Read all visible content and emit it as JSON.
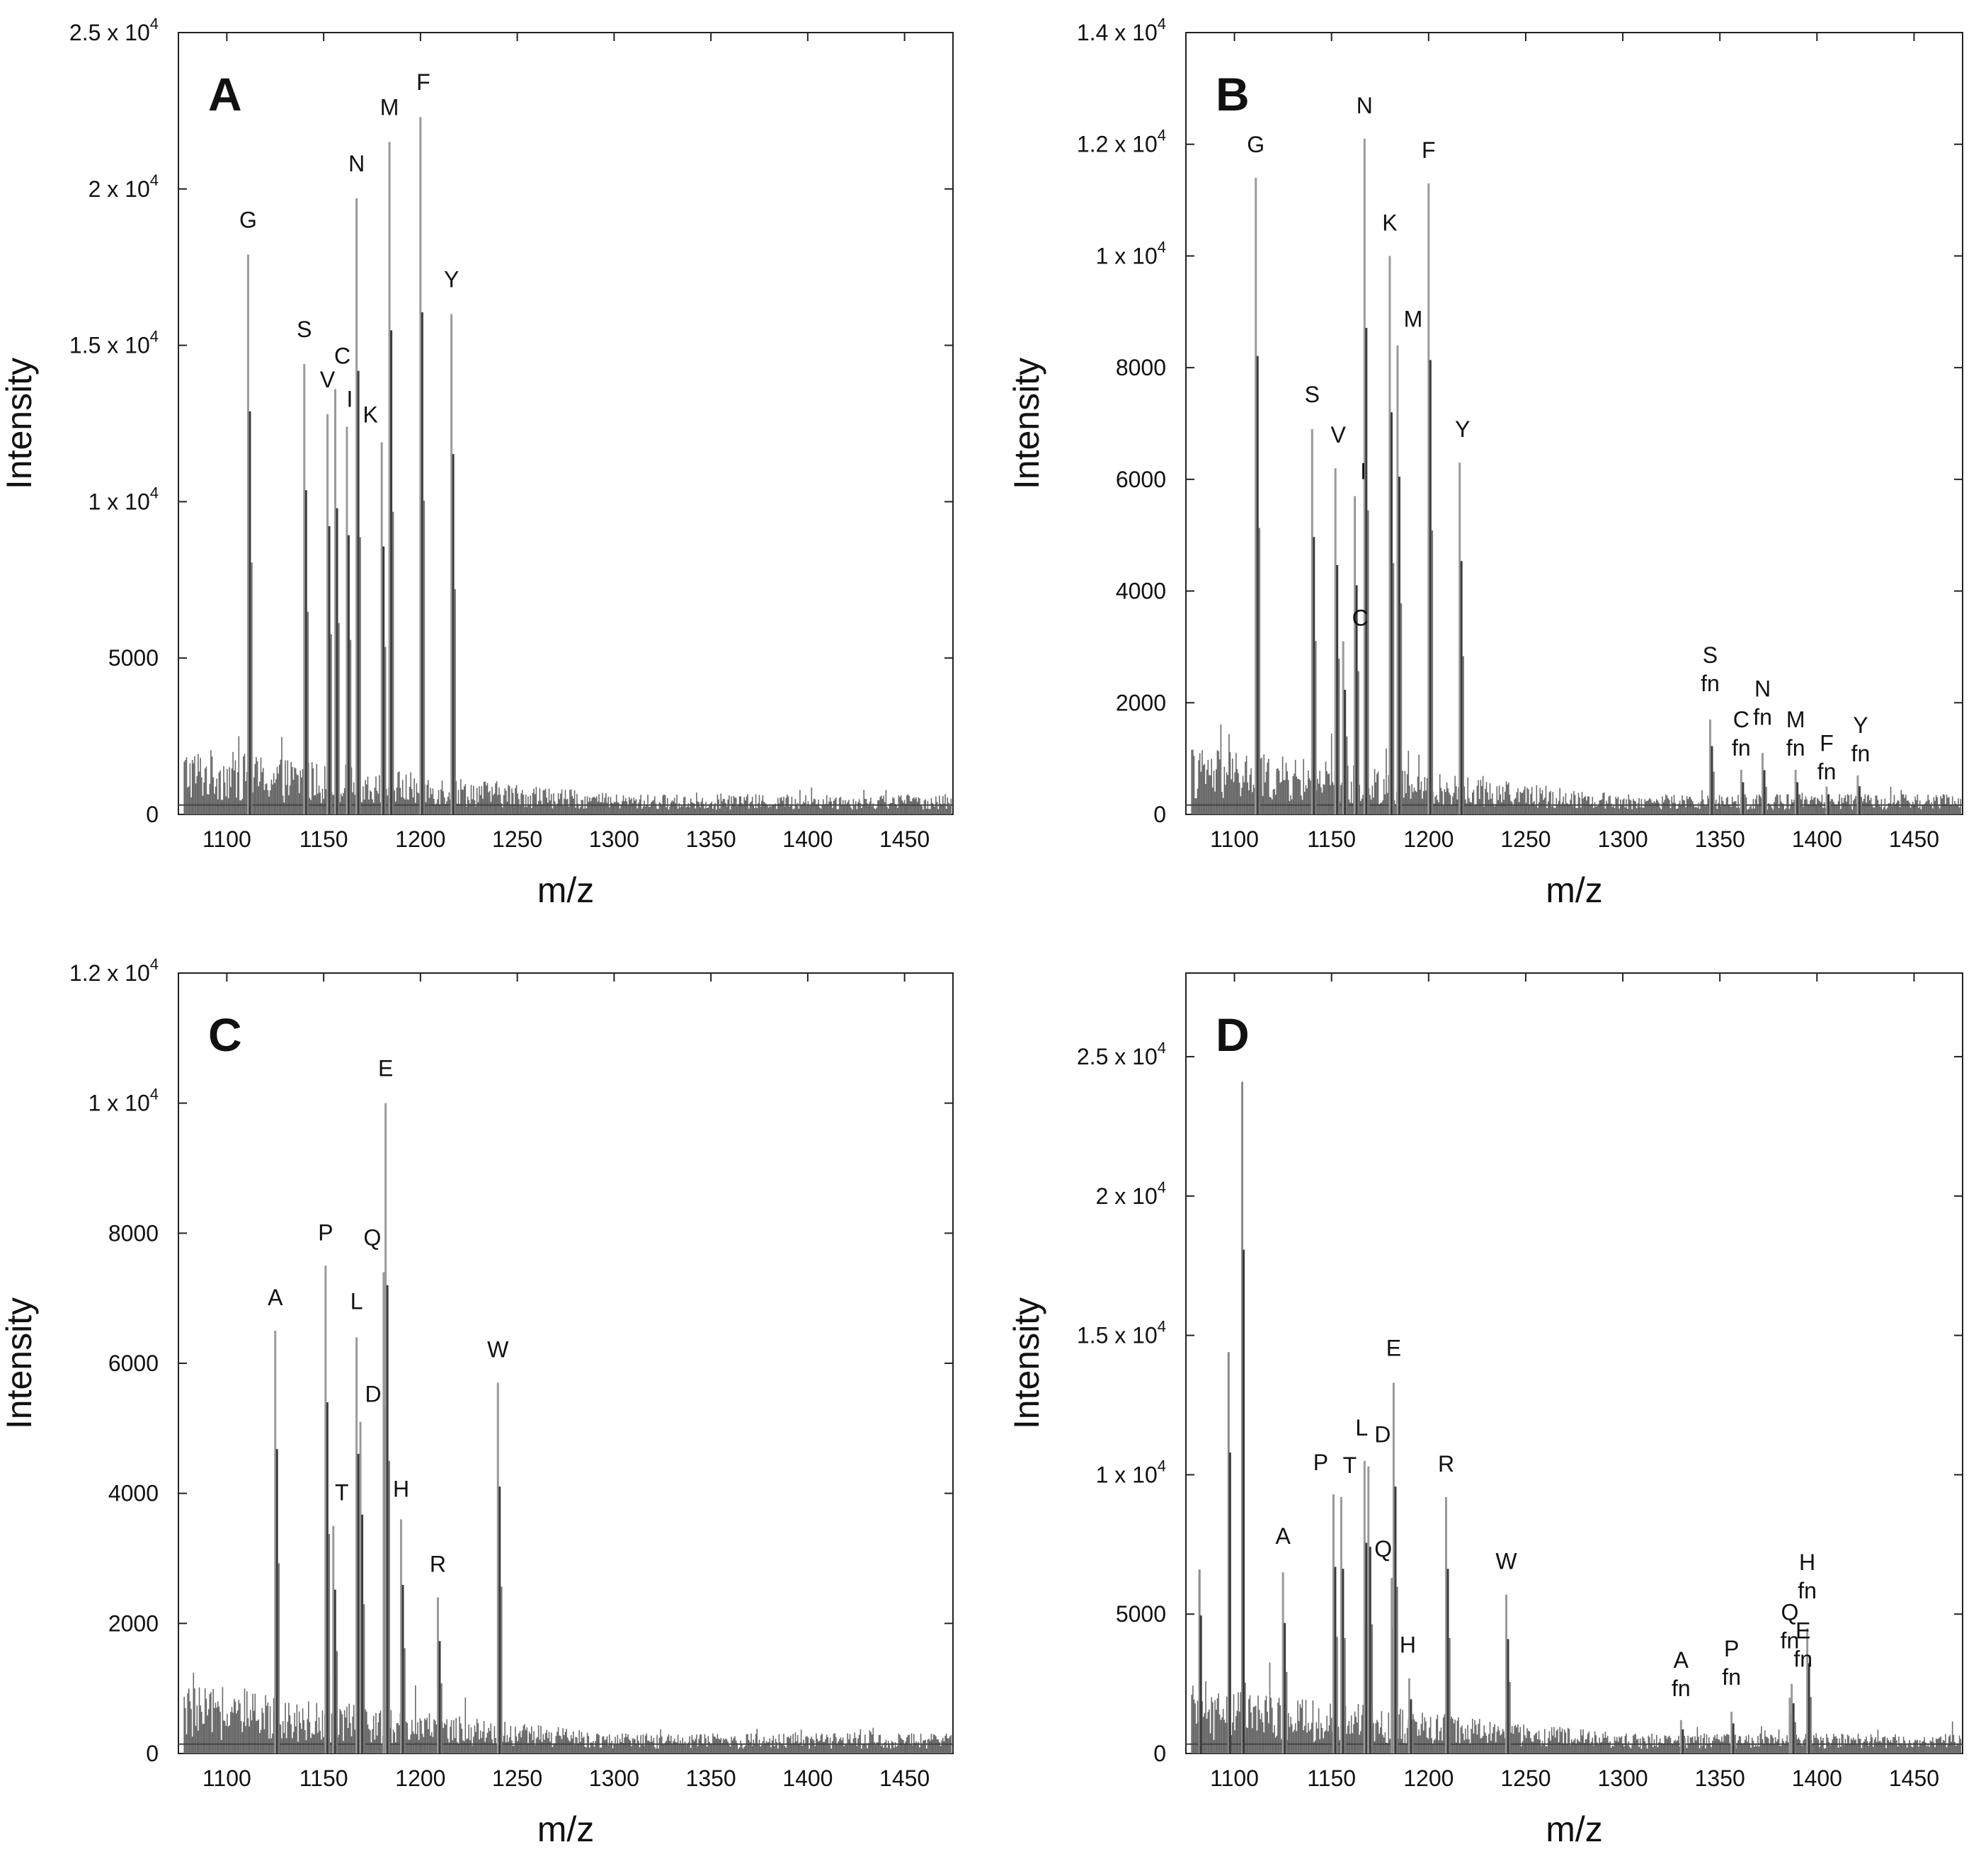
{
  "chart_data": [
    {
      "type": "line",
      "panel": "A",
      "xlabel": "m/z",
      "ylabel": "Intensity",
      "xlim": [
        1075,
        1475
      ],
      "ylim": [
        0,
        25000
      ],
      "xticks": [
        1100,
        1150,
        1200,
        1250,
        1300,
        1350,
        1400,
        1450
      ],
      "xtick_labels": [
        "1100",
        "1150",
        "1200",
        "1250",
        "1300",
        "1350",
        "1400",
        "1450"
      ],
      "yticks": [
        {
          "value": 0,
          "main": "0",
          "exp": ""
        },
        {
          "value": 5000,
          "main": "5000",
          "exp": ""
        },
        {
          "value": 10000,
          "main": "1 x 10",
          "exp": "4"
        },
        {
          "value": 15000,
          "main": "1.5 x 10",
          "exp": "4"
        },
        {
          "value": 20000,
          "main": "2 x 10",
          "exp": "4"
        },
        {
          "value": 25000,
          "main": "2.5 x 10",
          "exp": "4"
        }
      ],
      "peaks": [
        {
          "label": "G",
          "mz": 1111,
          "intensity": 17900
        },
        {
          "label": "S",
          "mz": 1140,
          "intensity": 14400
        },
        {
          "label": "V",
          "mz": 1152,
          "intensity": 12800
        },
        {
          "label": "C",
          "mz": 1156,
          "intensity": 13600
        },
        {
          "label": "I",
          "mz": 1162,
          "intensity": 12400
        },
        {
          "label": "N",
          "mz": 1167,
          "intensity": 19700
        },
        {
          "label": "K",
          "mz": 1180,
          "intensity": 11900
        },
        {
          "label": "M",
          "mz": 1184,
          "intensity": 21500
        },
        {
          "label": "F",
          "mz": 1200,
          "intensity": 22300
        },
        {
          "label": "Y",
          "mz": 1216,
          "intensity": 16000
        }
      ]
    },
    {
      "type": "line",
      "panel": "B",
      "xlabel": "m/z",
      "ylabel": "Intensity",
      "xlim": [
        1075,
        1475
      ],
      "ylim": [
        0,
        14000
      ],
      "xticks": [
        1100,
        1150,
        1200,
        1250,
        1300,
        1350,
        1400,
        1450
      ],
      "xtick_labels": [
        "1100",
        "1150",
        "1200",
        "1250",
        "1300",
        "1350",
        "1400",
        "1450"
      ],
      "yticks": [
        {
          "value": 0,
          "main": "0",
          "exp": ""
        },
        {
          "value": 2000,
          "main": "2000",
          "exp": ""
        },
        {
          "value": 4000,
          "main": "4000",
          "exp": ""
        },
        {
          "value": 6000,
          "main": "6000",
          "exp": ""
        },
        {
          "value": 8000,
          "main": "8000",
          "exp": ""
        },
        {
          "value": 10000,
          "main": "1 x 10",
          "exp": "4"
        },
        {
          "value": 12000,
          "main": "1.2 x 10",
          "exp": "4"
        },
        {
          "value": 14000,
          "main": "1.4 x 10",
          "exp": "4"
        }
      ],
      "peaks": [
        {
          "label": "G",
          "mz": 1111,
          "intensity": 11400
        },
        {
          "label": "S",
          "mz": 1140,
          "intensity": 6900
        },
        {
          "label": "V",
          "mz": 1152,
          "intensity": 6200
        },
        {
          "label": "I",
          "mz": 1162,
          "intensity": 5700
        },
        {
          "label": "C",
          "mz": 1156,
          "intensity": 3100
        },
        {
          "label": "N",
          "mz": 1167,
          "intensity": 12100
        },
        {
          "label": "K",
          "mz": 1180,
          "intensity": 10000
        },
        {
          "label": "M",
          "mz": 1184,
          "intensity": 8400
        },
        {
          "label": "F",
          "mz": 1200,
          "intensity": 11300
        },
        {
          "label": "Y",
          "mz": 1216,
          "intensity": 6300
        },
        {
          "label": "S",
          "sub": "fn",
          "mz": 1345,
          "intensity": 1700
        },
        {
          "label": "C",
          "sub": "fn",
          "mz": 1361,
          "intensity": 800
        },
        {
          "label": "N",
          "sub": "fn",
          "mz": 1372,
          "intensity": 1100
        },
        {
          "label": "M",
          "sub": "fn",
          "mz": 1389,
          "intensity": 800
        },
        {
          "label": "F",
          "sub": "fn",
          "mz": 1405,
          "intensity": 500
        },
        {
          "label": "Y",
          "sub": "fn",
          "mz": 1421,
          "intensity": 700
        }
      ]
    },
    {
      "type": "line",
      "panel": "C",
      "xlabel": "m/z",
      "ylabel": "Intensity",
      "xlim": [
        1075,
        1475
      ],
      "ylim": [
        0,
        12000
      ],
      "xticks": [
        1100,
        1150,
        1200,
        1250,
        1300,
        1350,
        1400,
        1450
      ],
      "xtick_labels": [
        "1100",
        "1150",
        "1200",
        "1250",
        "1300",
        "1350",
        "1400",
        "1450"
      ],
      "yticks": [
        {
          "value": 0,
          "main": "0",
          "exp": ""
        },
        {
          "value": 2000,
          "main": "2000",
          "exp": ""
        },
        {
          "value": 4000,
          "main": "4000",
          "exp": ""
        },
        {
          "value": 6000,
          "main": "6000",
          "exp": ""
        },
        {
          "value": 8000,
          "main": "8000",
          "exp": ""
        },
        {
          "value": 10000,
          "main": "1 x 10",
          "exp": "4"
        },
        {
          "value": 12000,
          "main": "1.2 x 10",
          "exp": "4"
        }
      ],
      "peaks": [
        {
          "label": "A",
          "mz": 1125,
          "intensity": 6500
        },
        {
          "label": "P",
          "mz": 1151,
          "intensity": 7500
        },
        {
          "label": "T",
          "mz": 1155,
          "intensity": 3500
        },
        {
          "label": "L",
          "mz": 1167,
          "intensity": 6400
        },
        {
          "label": "D",
          "mz": 1169,
          "intensity": 5100
        },
        {
          "label": "Q",
          "mz": 1181,
          "intensity": 7400
        },
        {
          "label": "E",
          "mz": 1182,
          "intensity": 10000
        },
        {
          "label": "H",
          "mz": 1190,
          "intensity": 3600
        },
        {
          "label": "R",
          "mz": 1209,
          "intensity": 2400
        },
        {
          "label": "W",
          "mz": 1240,
          "intensity": 5700
        }
      ]
    },
    {
      "type": "line",
      "panel": "D",
      "xlabel": "m/z",
      "ylabel": "Intensity",
      "xlim": [
        1075,
        1475
      ],
      "ylim": [
        0,
        28000
      ],
      "xticks": [
        1100,
        1150,
        1200,
        1250,
        1300,
        1350,
        1400,
        1450
      ],
      "xtick_labels": [
        "1100",
        "1150",
        "1200",
        "1250",
        "1300",
        "1350",
        "1400",
        "1450"
      ],
      "yticks": [
        {
          "value": 0,
          "main": "0",
          "exp": ""
        },
        {
          "value": 5000,
          "main": "5000",
          "exp": ""
        },
        {
          "value": 10000,
          "main": "1 x 10",
          "exp": "4"
        },
        {
          "value": 15000,
          "main": "1.5 x 10",
          "exp": "4"
        },
        {
          "value": 20000,
          "main": "2 x 10",
          "exp": "4"
        },
        {
          "value": 25000,
          "main": "2.5 x 10",
          "exp": "4"
        }
      ],
      "unlabeled_peaks": [
        {
          "mz": 1097,
          "intensity": 14400
        },
        {
          "mz": 1104,
          "intensity": 24100
        },
        {
          "mz": 1082,
          "intensity": 6600
        }
      ],
      "peaks": [
        {
          "label": "A",
          "mz": 1125,
          "intensity": 6500
        },
        {
          "label": "P",
          "mz": 1151,
          "intensity": 9300
        },
        {
          "label": "T",
          "mz": 1155,
          "intensity": 9200
        },
        {
          "label": "L",
          "mz": 1167,
          "intensity": 10500
        },
        {
          "label": "D",
          "mz": 1169,
          "intensity": 10300
        },
        {
          "label": "Q",
          "mz": 1181,
          "intensity": 6300
        },
        {
          "label": "E",
          "mz": 1182,
          "intensity": 13300
        },
        {
          "label": "H",
          "mz": 1190,
          "intensity": 2700
        },
        {
          "label": "R",
          "mz": 1209,
          "intensity": 9200
        },
        {
          "label": "W",
          "mz": 1240,
          "intensity": 5700
        },
        {
          "label": "A",
          "sub": "fn",
          "mz": 1330,
          "intensity": 1200
        },
        {
          "label": "P",
          "sub": "fn",
          "mz": 1356,
          "intensity": 1500
        },
        {
          "label": "Q",
          "sub": "fn",
          "mz": 1386,
          "intensity": 2000
        },
        {
          "label": "E",
          "sub": "fn",
          "mz": 1387,
          "intensity": 2500
        },
        {
          "label": "H",
          "sub": "fn",
          "mz": 1395,
          "intensity": 4500
        }
      ]
    }
  ]
}
